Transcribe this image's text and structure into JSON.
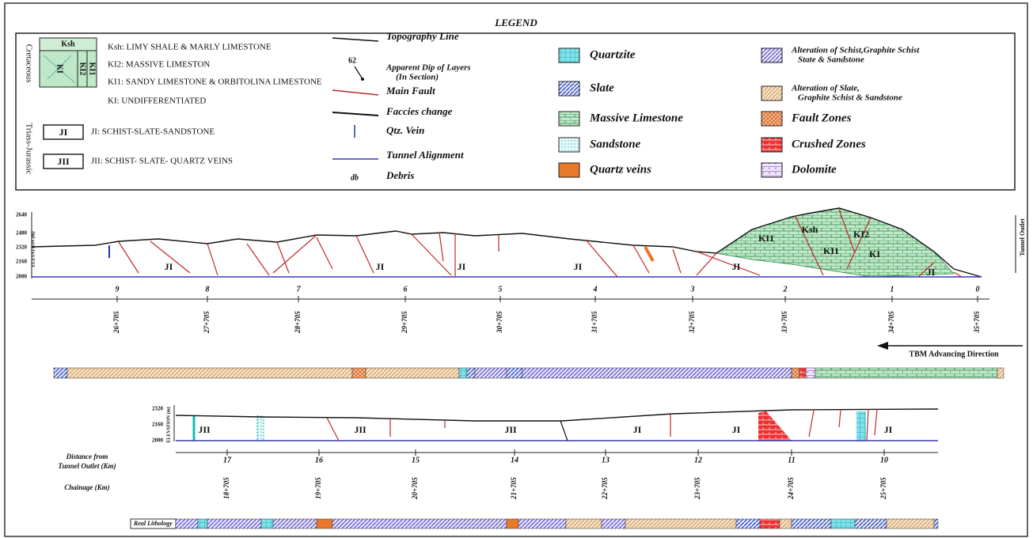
{
  "legend": {
    "title": "LEGEND",
    "cretaceous": "Cretaceous",
    "triass_jurassic": "Triass-Jurassic",
    "swatch_labels": [
      "Ksh",
      "KI2",
      "KI1",
      "KI"
    ],
    "cretaceous_items": [
      "Ksh: LIMY SHALE & MARLY LIMESTONE",
      "KI2: MASSIVE LIMESTON",
      "KI1: SANDY LIMESTONE & ORBITOLINA LIMESTONE",
      "KI: UNDIFFERENTIATED"
    ],
    "jurassic_items": [
      {
        "code": "JI",
        "text": "JI: SCHIST-SLATE-SANDSTONE"
      },
      {
        "code": "JII",
        "text": "JII: SCHIST- SLATE- QUARTZ VEINS"
      }
    ],
    "symbols": {
      "topography": "Topography Line",
      "dip_symbol": "62",
      "dip": "Apparent Dip of Layers",
      "dip_note": "(In Section)",
      "main_fault": "Main Fault",
      "facies": "Faccies change",
      "qtz_vein": "Qtz. Vein",
      "tunnel": "Tunnel Alignment",
      "debris_symbol": "db",
      "debris": "Debris"
    },
    "lithologies": [
      "Quartzite",
      "Slate",
      "Massive Limestone",
      "Sandstone",
      "Quartz veins"
    ],
    "zones": [
      [
        "Alteration of Schist,Graphite Schist",
        "State & Sandstone"
      ],
      [
        "Alteration of Slate,",
        "Graphite Schist & Sandstone"
      ],
      [
        "Fault Zones"
      ],
      [
        "Crushed Zones"
      ],
      [
        "Dolomite"
      ]
    ]
  },
  "upper_section": {
    "elevation_label": "ELEVATION (m)",
    "elevations": [
      "2640",
      "2480",
      "2320",
      "2160",
      "2000"
    ],
    "distances": [
      "9",
      "8",
      "7",
      "6",
      "5",
      "4",
      "3",
      "2",
      "1",
      "0"
    ],
    "chainages": [
      "26+705",
      "27+705",
      "28+705",
      "29+705",
      "30+705",
      "31+705",
      "32+705",
      "33+705",
      "34+705",
      "35+705"
    ],
    "units": [
      "JI",
      "JI",
      "JI",
      "JI",
      "JI",
      "KI1",
      "Ksh",
      "KI2",
      "KI1",
      "KI",
      "JI"
    ],
    "tunnel_outlet": "Tunnel Outlet",
    "direction": "TBM Advancing Direction"
  },
  "lower_section": {
    "elevation_label": "ELEVATION (m)",
    "elevations": [
      "2320",
      "2160",
      "2000"
    ],
    "distance_title": [
      "Distance from",
      "Tunnel Outlet (Km)"
    ],
    "chainage_title": "Chainage (Km)",
    "distances": [
      "17",
      "16",
      "15",
      "14",
      "13",
      "12",
      "11",
      "10"
    ],
    "chainages": [
      "18+705",
      "19+705",
      "20+705",
      "21+705",
      "22+705",
      "23+705",
      "24+705",
      "25+705"
    ],
    "units": [
      "JII",
      "JII",
      "JII",
      "JI",
      "JI",
      "JI"
    ],
    "lithology_title": "Real Lithology"
  }
}
